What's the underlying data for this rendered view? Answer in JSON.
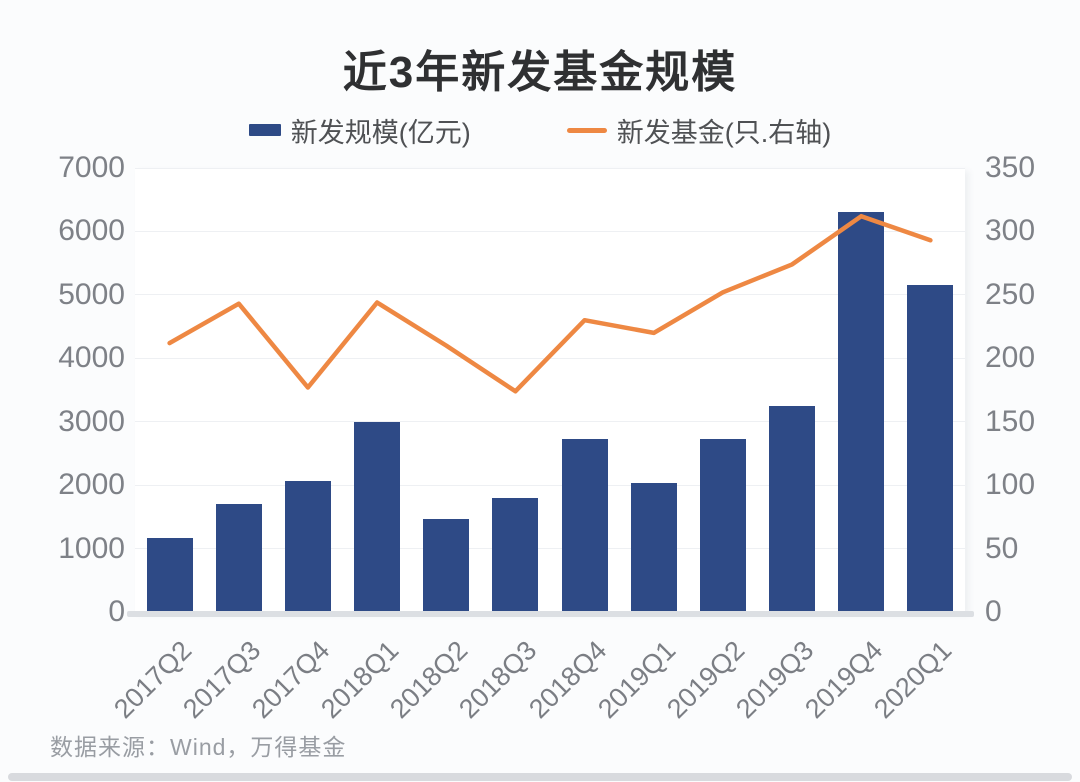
{
  "chart_data": {
    "type": "combo",
    "title": "近3年新发基金规模",
    "source": "数据来源：Wind，万得基金",
    "categories": [
      "2017Q2",
      "2017Q3",
      "2017Q4",
      "2018Q1",
      "2018Q2",
      "2018Q3",
      "2018Q4",
      "2019Q1",
      "2019Q2",
      "2019Q3",
      "2019Q4",
      "2020Q1"
    ],
    "series": [
      {
        "name": "新发规模(亿元)",
        "type": "bar",
        "axis": "left",
        "color": "#2E4A86",
        "values": [
          1160,
          1700,
          2060,
          3000,
          1470,
          1800,
          2720,
          2030,
          2720,
          3250,
          6300,
          5150
        ]
      },
      {
        "name": "新发基金(只.右轴)",
        "type": "line",
        "axis": "right",
        "color": "#EE8843",
        "values": [
          212,
          243,
          177,
          244,
          210,
          174,
          230,
          220,
          252,
          274,
          312,
          293
        ]
      }
    ],
    "left_axis": {
      "min": 0,
      "max": 7000,
      "step": 1000
    },
    "right_axis": {
      "min": 0,
      "max": 350,
      "step": 50
    },
    "grid": true,
    "legend_position": "top"
  }
}
